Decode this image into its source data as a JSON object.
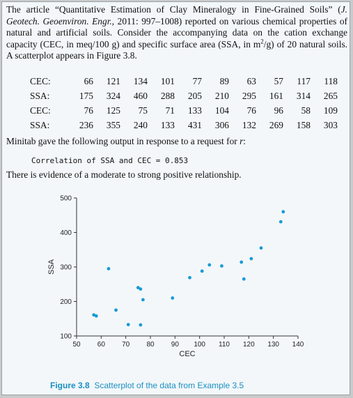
{
  "intro": {
    "t1": "The article “Quantitative Estimation of Clay Mineralogy in Fine-Grained Soils” (",
    "journal": "J. Geotech. Geoenviron. Engr.",
    "t2": ", 2011: 997–1008) reported on various chemical properties of natural and artificial soils. Consider the accompanying data on the cation exchange capacity (CEC, in meq/100 g) and specific surface area (SSA, in m",
    "sup": "2",
    "t3": "/g) of 20 natural soils. A scatterplot appears in Figure 3.8."
  },
  "table": {
    "rows": [
      {
        "label": "CEC:",
        "values": [
          "66",
          "121",
          "134",
          "101",
          "77",
          "89",
          "63",
          "57",
          "117",
          "118"
        ]
      },
      {
        "label": "SSA:",
        "values": [
          "175",
          "324",
          "460",
          "288",
          "205",
          "210",
          "295",
          "161",
          "314",
          "265"
        ]
      },
      {
        "label": "CEC:",
        "values": [
          "76",
          "125",
          "75",
          "71",
          "133",
          "104",
          "76",
          "96",
          "58",
          "109"
        ]
      },
      {
        "label": "SSA:",
        "values": [
          "236",
          "355",
          "240",
          "133",
          "431",
          "306",
          "132",
          "269",
          "158",
          "303"
        ]
      }
    ]
  },
  "minitab": {
    "t1": "Minitab gave the following output in response to a request for ",
    "r": "r",
    "t2": ":"
  },
  "output_line": "Correlation of SSA and CEC = 0.853",
  "evidence_line": "There is evidence of a moderate to strong positive relationship.",
  "chart_data": {
    "type": "scatter",
    "xlabel": "CEC",
    "ylabel": "SSA",
    "xlim": [
      50,
      140
    ],
    "ylim": [
      100,
      500
    ],
    "xticks": [
      50,
      60,
      70,
      80,
      90,
      100,
      110,
      120,
      130,
      140
    ],
    "yticks": [
      100,
      200,
      300,
      400,
      500
    ],
    "grid": false,
    "point_color": "#1a9ad6",
    "points": [
      [
        66,
        175
      ],
      [
        121,
        324
      ],
      [
        134,
        460
      ],
      [
        101,
        288
      ],
      [
        77,
        205
      ],
      [
        89,
        210
      ],
      [
        63,
        295
      ],
      [
        57,
        161
      ],
      [
        117,
        314
      ],
      [
        118,
        265
      ],
      [
        76,
        236
      ],
      [
        125,
        355
      ],
      [
        75,
        240
      ],
      [
        71,
        133
      ],
      [
        133,
        431
      ],
      [
        104,
        306
      ],
      [
        76,
        132
      ],
      [
        96,
        269
      ],
      [
        58,
        158
      ],
      [
        109,
        303
      ]
    ]
  },
  "caption": {
    "label": "Figure 3.8",
    "text": "Scatterplot of the data from Example 3.5",
    "color": "#1a8fc4"
  }
}
